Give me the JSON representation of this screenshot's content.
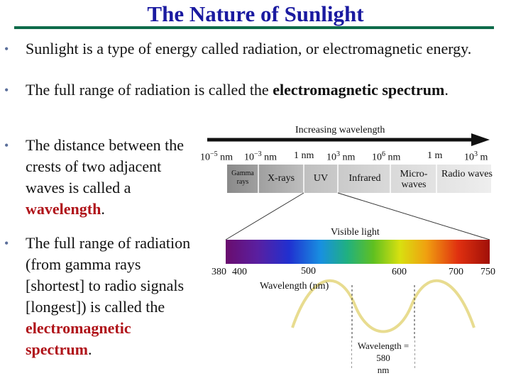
{
  "title": "The Nature of Sunlight",
  "bullets": {
    "b1": {
      "text": "Sunlight is a type of energy called radiation, or electromagnetic energy."
    },
    "b2": {
      "pre": "The full range of radiation is called the ",
      "bold": "electromagnetic spectrum",
      "post": "."
    },
    "b3": {
      "pre": "The distance between the crests of two adjacent waves is called a ",
      "bold": "wavelength",
      "post": "."
    },
    "b4": {
      "pre": "The full range of radiation (from gamma rays [shortest] to radio signals [longest]) is called the ",
      "bold": "electromagnetic spectrum",
      "post": "."
    }
  },
  "diagram": {
    "arrow_label": "Increasing wavelength",
    "scale_ticks": [
      "10−5 nm",
      "10−3 nm",
      "1 nm",
      "103 nm",
      "106 nm",
      "1 m",
      "103 m"
    ],
    "bands": [
      "Gamma rays",
      "X-rays",
      "UV",
      "Infrared",
      "Micro-waves",
      "Radio waves"
    ],
    "visible_label": "Visible light",
    "visible_ticks": [
      "380",
      "400",
      "500",
      "600",
      "700",
      "750"
    ],
    "visible_axis_label": "Wavelength (nm)",
    "wave_label_line1": "Wavelength =",
    "wave_label_line2": "580",
    "wave_label_line3": "nm",
    "colors": {
      "title": "#1a1aa0",
      "rule": "#0e6b4a",
      "highlight": "#b0141a",
      "wave": "#e8dc90"
    }
  }
}
